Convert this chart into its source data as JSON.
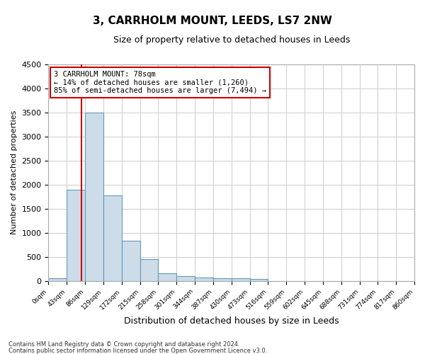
{
  "title1": "3, CARRHOLM MOUNT, LEEDS, LS7 2NW",
  "title2": "Size of property relative to detached houses in Leeds",
  "xlabel": "Distribution of detached houses by size in Leeds",
  "ylabel": "Number of detached properties",
  "bar_color": "#ccdce8",
  "bar_edge_color": "#6699bb",
  "grid_color": "#cccccc",
  "annotation_box_color": "#cc0000",
  "vline_color": "#cc0000",
  "property_sqm": 78,
  "footnote1": "Contains HM Land Registry data © Crown copyright and database right 2024.",
  "footnote2": "Contains public sector information licensed under the Open Government Licence v3.0.",
  "bin_edges": [
    0,
    43,
    86,
    129,
    172,
    215,
    258,
    301,
    344,
    387,
    430,
    473,
    516,
    559,
    602,
    645,
    688,
    731,
    774,
    817,
    860
  ],
  "bar_heights": [
    50,
    1900,
    3500,
    1780,
    830,
    450,
    160,
    100,
    70,
    55,
    50,
    45,
    0,
    0,
    0,
    0,
    0,
    0,
    0,
    0
  ],
  "annotation_line1": "3 CARRHOLM MOUNT: 78sqm",
  "annotation_line2": "← 14% of detached houses are smaller (1,260)",
  "annotation_line3": "85% of semi-detached houses are larger (7,494) →",
  "ylim": [
    0,
    4500
  ],
  "xlim": [
    0,
    860
  ],
  "yticks": [
    0,
    500,
    1000,
    1500,
    2000,
    2500,
    3000,
    3500,
    4000,
    4500
  ]
}
